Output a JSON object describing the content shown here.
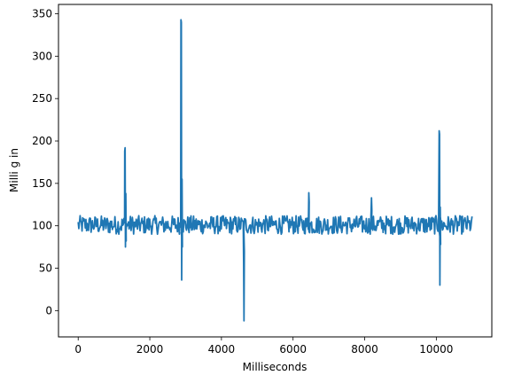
{
  "chart_data": {
    "type": "line",
    "title": "",
    "xlabel": "Milliseconds",
    "ylabel": "Milli g in",
    "xlim": [
      -550,
      11550
    ],
    "ylim": [
      -31,
      361
    ],
    "xticks": [
      0,
      2000,
      4000,
      6000,
      8000,
      10000
    ],
    "xtick_labels": [
      "0",
      "2000",
      "4000",
      "6000",
      "8000",
      "10000"
    ],
    "yticks": [
      0,
      50,
      100,
      150,
      200,
      250,
      300,
      350
    ],
    "ytick_labels": [
      "0",
      "50",
      "100",
      "150",
      "200",
      "250",
      "300",
      "350"
    ],
    "grid": false,
    "legend": "none",
    "series": [
      {
        "color": "#1f77b4",
        "baseline": 101,
        "noise_amplitude": 11,
        "x_start": 0,
        "x_end": 11000,
        "events": [
          {
            "x": 1300,
            "values": [
              188,
              192,
              75,
              138,
              82
            ]
          },
          {
            "x": 2870,
            "values": [
              343,
              340,
              36,
              155,
              75
            ]
          },
          {
            "x": 4620,
            "values": [
              57,
              -12,
              70
            ]
          },
          {
            "x": 6440,
            "values": [
              139,
              128
            ]
          },
          {
            "x": 8190,
            "values": [
              133,
              118
            ]
          },
          {
            "x": 10080,
            "values": [
              212,
              208,
              30,
              122,
              78
            ]
          }
        ]
      }
    ]
  }
}
